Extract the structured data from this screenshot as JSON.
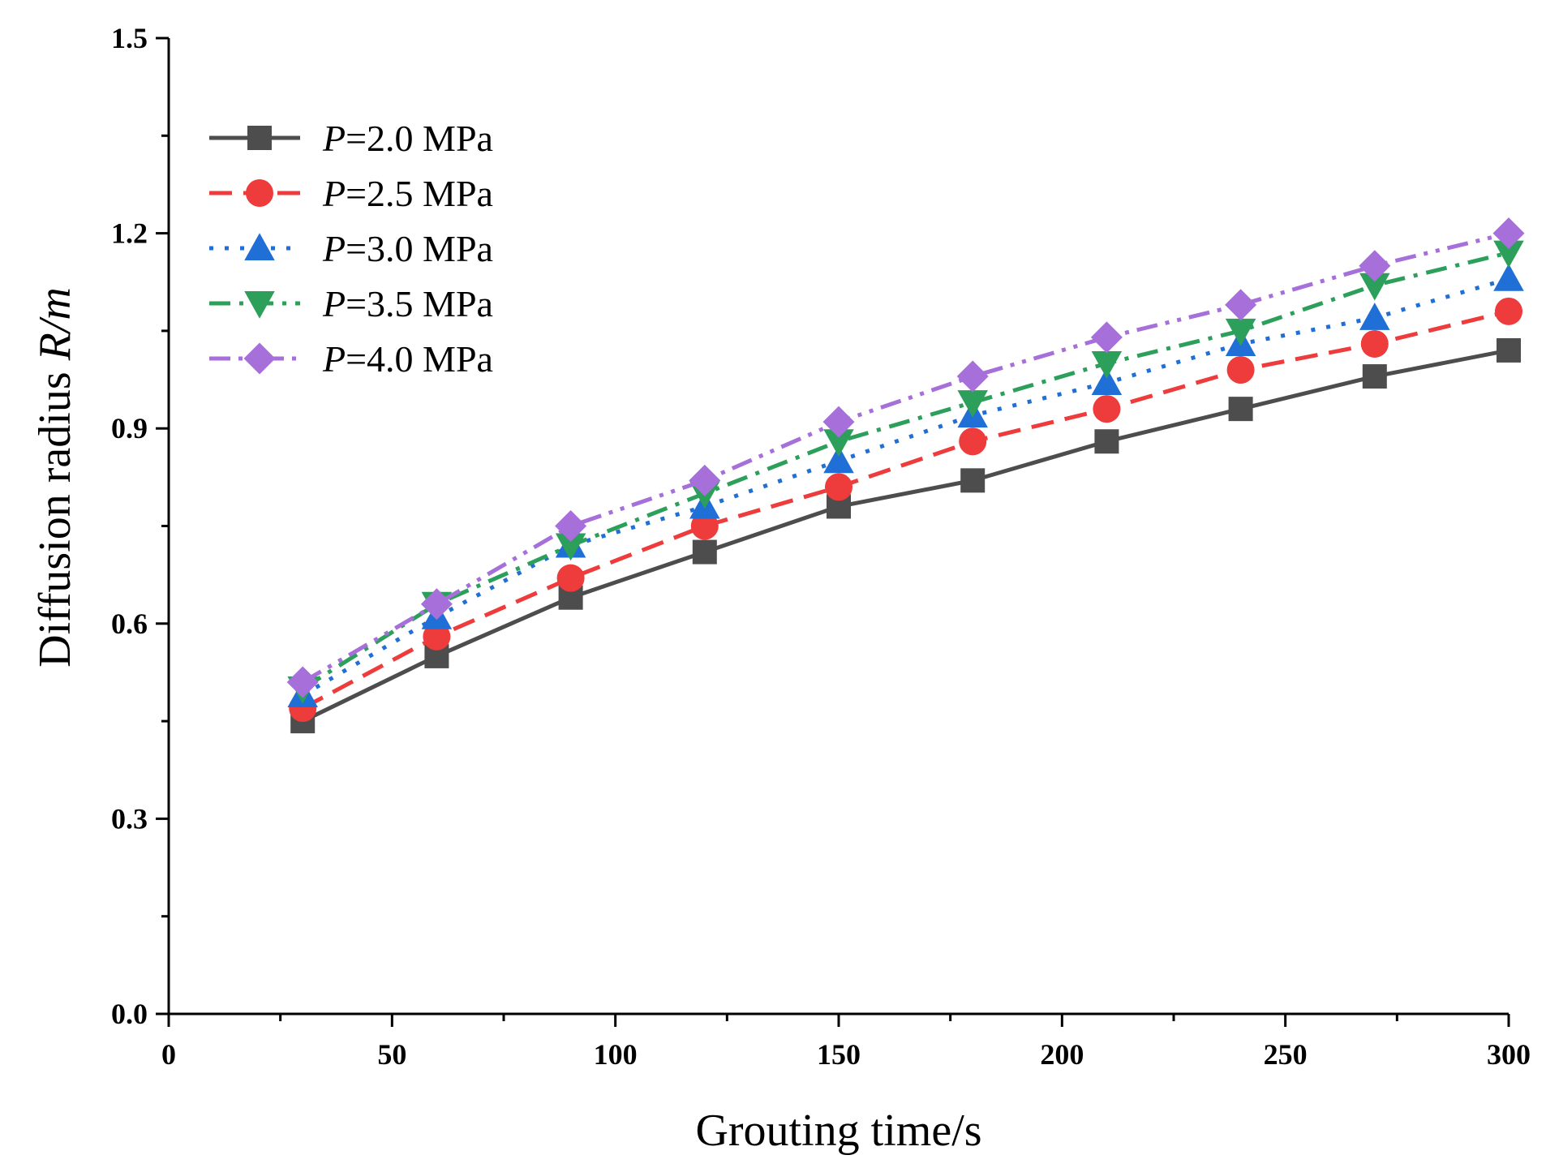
{
  "chart_data": {
    "type": "line",
    "title": "",
    "xlabel": "Grouting time/s",
    "ylabel_prefix": "Diffusion radius ",
    "ylabel_italic": "R/m",
    "xlim": [
      0,
      300
    ],
    "ylim": [
      0,
      1.5
    ],
    "x_ticks": [
      0,
      50,
      100,
      150,
      200,
      250,
      300
    ],
    "x_tick_labels": [
      "0",
      "50",
      "100",
      "150",
      "200",
      "250",
      "300"
    ],
    "y_ticks": [
      0,
      0.3,
      0.6,
      0.9,
      1.2,
      1.5
    ],
    "y_tick_labels": [
      "0.0",
      "0.3",
      "0.6",
      "0.9",
      "1.2",
      "1.5"
    ],
    "grid": false,
    "legend_position": "top-left",
    "x": [
      30,
      60,
      90,
      120,
      150,
      180,
      210,
      240,
      270,
      300
    ],
    "series": [
      {
        "name_italic": "P",
        "name_rest": "=2.0 MPa",
        "color": "#4d4d4d",
        "marker": "square",
        "dash": "solid",
        "values": [
          0.45,
          0.55,
          0.64,
          0.71,
          0.78,
          0.82,
          0.88,
          0.93,
          0.98,
          1.02
        ]
      },
      {
        "name_italic": "P",
        "name_rest": "=2.5 MPa",
        "color": "#ee3b3b",
        "marker": "circle",
        "dash": "dash",
        "values": [
          0.47,
          0.58,
          0.67,
          0.75,
          0.81,
          0.88,
          0.93,
          0.99,
          1.03,
          1.08
        ]
      },
      {
        "name_italic": "P",
        "name_rest": "=3.0 MPa",
        "color": "#1f6fd6",
        "marker": "triangle-up",
        "dash": "dot",
        "values": [
          0.49,
          0.61,
          0.72,
          0.78,
          0.85,
          0.92,
          0.97,
          1.03,
          1.07,
          1.13
        ]
      },
      {
        "name_italic": "P",
        "name_rest": "=3.5 MPa",
        "color": "#2ca05a",
        "marker": "triangle-down",
        "dash": "dashdot",
        "values": [
          0.5,
          0.63,
          0.72,
          0.8,
          0.88,
          0.94,
          1.0,
          1.05,
          1.12,
          1.17
        ]
      },
      {
        "name_italic": "P",
        "name_rest": "=4.0 MPa",
        "color": "#a66fd9",
        "marker": "diamond",
        "dash": "dashdotdot",
        "values": [
          0.51,
          0.63,
          0.75,
          0.82,
          0.91,
          0.98,
          1.04,
          1.09,
          1.15,
          1.2
        ]
      }
    ]
  }
}
